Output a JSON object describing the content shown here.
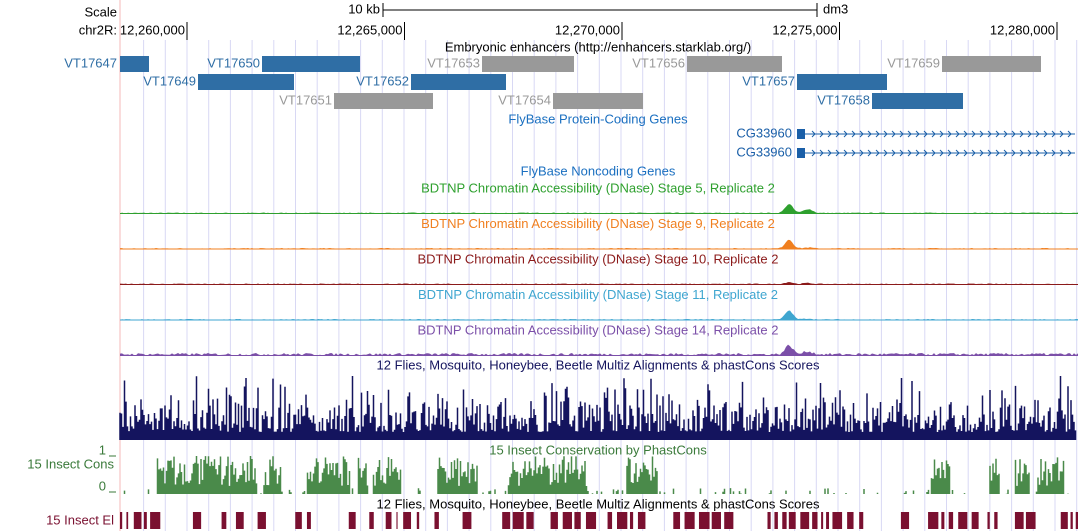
{
  "ruler": {
    "scale_label": "Scale",
    "scale_bar": "10 kb",
    "assembly": "dm3",
    "chrom": "chr2R:",
    "ticks": [
      "12,260,000",
      "12,265,000",
      "12,270,000",
      "12,275,000",
      "12,280,000"
    ]
  },
  "enhancers": {
    "title": "Embryonic enhancers (http://enhancers.starklab.org/)",
    "features": [
      "VT17647",
      "VT17650",
      "VT17653",
      "VT17656",
      "VT17659",
      "VT17649",
      "VT17652",
      "VT17657",
      "VT17651",
      "VT17654",
      "VT17658"
    ]
  },
  "protein_coding": {
    "title": "FlyBase Protein-Coding Genes",
    "genes": [
      "CG33960",
      "CG33960"
    ]
  },
  "noncoding": {
    "title": "FlyBase Noncoding Genes"
  },
  "dnase": [
    "BDTNP Chromatin Accessibility (DNase) Stage 5, Replicate 2",
    "BDTNP Chromatin Accessibility (DNase) Stage 9, Replicate 2",
    "BDTNP Chromatin Accessibility (DNase) Stage 10, Replicate 2",
    "BDTNP Chromatin Accessibility (DNase) Stage 11, Replicate 2",
    "BDTNP Chromatin Accessibility (DNase) Stage 14, Replicate 2"
  ],
  "multiz": {
    "title": "12 Flies, Mosquito, Honeybee, Beetle Multiz Alignments & phastCons Scores"
  },
  "phastcons": {
    "title": "15 Insect Conservation by PhastCons",
    "label": "15 Insect Cons",
    "max": "1",
    "min": "0"
  },
  "elements": {
    "title": "12 Flies, Mosquito, Honeybee, Beetle Multiz Alignments & phastCons Scores",
    "label": "15 Insect El"
  }
}
